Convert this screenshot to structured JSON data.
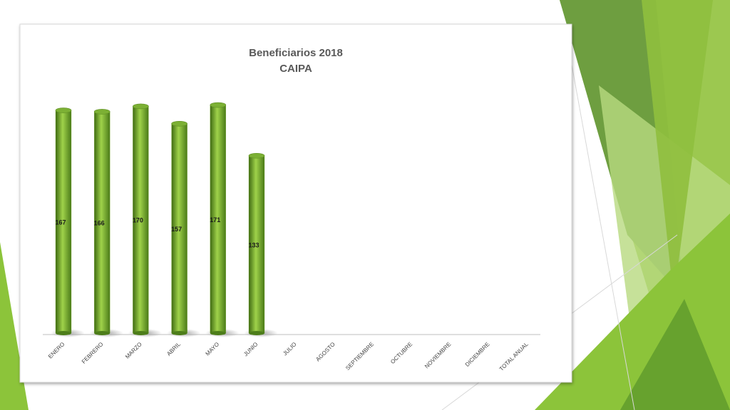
{
  "chart_data": {
    "type": "bar",
    "title": "Beneficiarios 2018",
    "subtitle": "CAIPA",
    "categories": [
      "ENERO",
      "FEBRERO",
      "MARZO",
      "ABRIL",
      "MAYO",
      "JUNIO",
      "JULIO",
      "AGOSTO",
      "SEPTIEMBRE",
      "OCTUBRE",
      "NOVIEMBRE",
      "DICIEMBRE",
      "TOTAL ANUAL"
    ],
    "values": [
      167,
      166,
      170,
      157,
      171,
      133,
      null,
      null,
      null,
      null,
      null,
      null,
      null
    ],
    "color": "#7cb034"
  }
}
